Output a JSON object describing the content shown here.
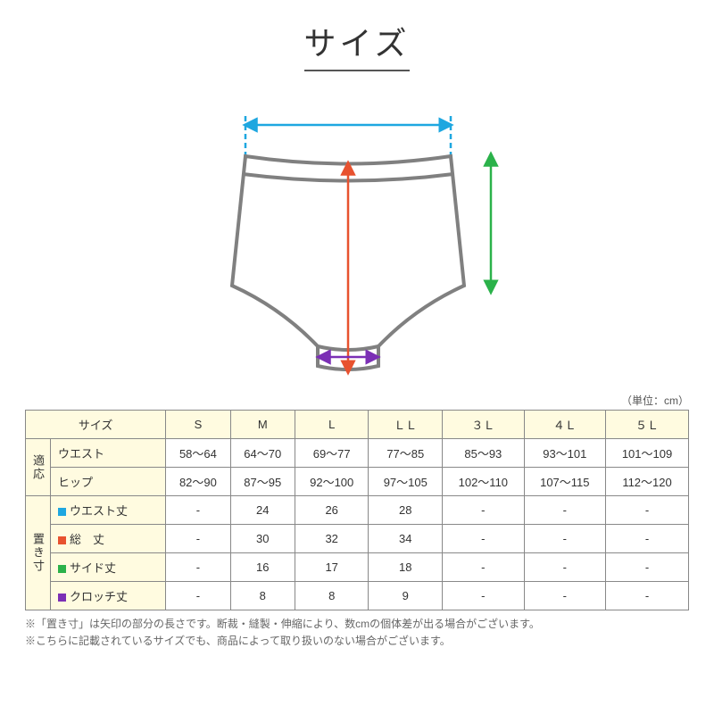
{
  "title": "サイズ",
  "unit_label": "（単位：cm）",
  "diagram": {
    "garment_stroke": "#808080",
    "garment_stroke_width": 4,
    "waist_arrow": {
      "color": "#1ea7e0",
      "dash": "6 4",
      "stroke_width": 2.5
    },
    "length_arrow": {
      "color": "#e8522f",
      "stroke_width": 2.5
    },
    "side_arrow": {
      "color": "#2bb24a",
      "stroke_width": 2.5
    },
    "crotch_arrow": {
      "color": "#7b2fb5",
      "stroke_width": 2.5
    }
  },
  "legend_colors": {
    "waist_len": "#1ea7e0",
    "total_len": "#e8522f",
    "side_len": "#2bb24a",
    "crotch_len": "#7b2fb5"
  },
  "table": {
    "header_bg": "#fffbe0",
    "size_header": "サイズ",
    "columns": [
      "S",
      "M",
      "L",
      "ＬＬ",
      "３Ｌ",
      "４Ｌ",
      "５Ｌ"
    ],
    "groups": [
      {
        "label": "適応",
        "rows": [
          {
            "name": "ウエスト",
            "marker": null,
            "vals": [
              "58～64",
              "64～70",
              "69～77",
              "77～85",
              "85～93",
              "93～101",
              "101～109"
            ]
          },
          {
            "name": "ヒップ",
            "marker": null,
            "vals": [
              "82～90",
              "87～95",
              "92～100",
              "97～105",
              "102～110",
              "107～115",
              "112～120"
            ]
          }
        ]
      },
      {
        "label": "置き寸",
        "rows": [
          {
            "name": "ウエスト丈",
            "marker": "waist_len",
            "vals": [
              "-",
              "24",
              "26",
              "28",
              "-",
              "-",
              "-"
            ]
          },
          {
            "name": "総　丈",
            "marker": "total_len",
            "vals": [
              "-",
              "30",
              "32",
              "34",
              "-",
              "-",
              "-"
            ]
          },
          {
            "name": "サイド丈",
            "marker": "side_len",
            "vals": [
              "-",
              "16",
              "17",
              "18",
              "-",
              "-",
              "-"
            ]
          },
          {
            "name": "クロッチ丈",
            "marker": "crotch_len",
            "vals": [
              "-",
              "8",
              "8",
              "9",
              "-",
              "-",
              "-"
            ]
          }
        ]
      }
    ]
  },
  "notes": [
    "※「置き寸」は矢印の部分の長さです。断裁・縫製・伸縮により、数cmの個体差が出る場合がございます。",
    "※こちらに記載されているサイズでも、商品によって取り扱いのない場合がございます。"
  ]
}
